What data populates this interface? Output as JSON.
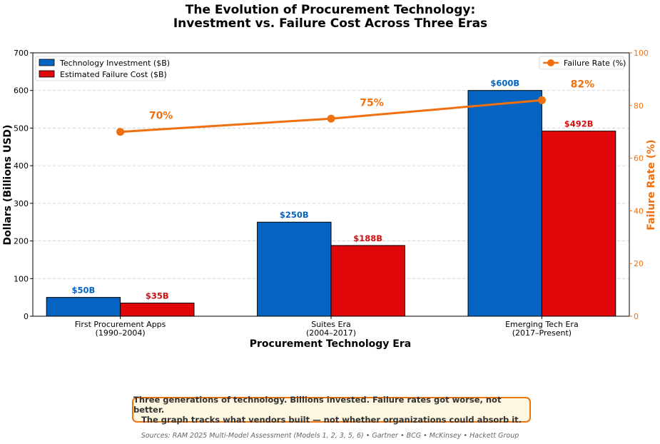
{
  "colors": {
    "investment": "#0563c1",
    "failure": "#e0070b",
    "rate": "#f0700f",
    "investment_label": "#0563c1",
    "failure_label": "#d31010",
    "rate_label": "#f0700f"
  },
  "chart_data": {
    "type": "bar",
    "title_lines": [
      "The Evolution of Procurement Technology:",
      "Investment vs. Failure Cost Across Three Eras"
    ],
    "categories": [
      {
        "name": "First Procurement Apps",
        "period": "(1990–2004)"
      },
      {
        "name": "Suites Era",
        "period": "(2004–2017)"
      },
      {
        "name": "Emerging Tech Era",
        "period": "(2017–Present)"
      }
    ],
    "series": [
      {
        "name": "Technology Investment ($B)",
        "values": [
          50,
          250,
          600
        ],
        "labels": [
          "$50B",
          "$250B",
          "$600B"
        ]
      },
      {
        "name": "Estimated Failure Cost ($B)",
        "values": [
          35,
          188,
          492
        ],
        "labels": [
          "$35B",
          "$188B",
          "$492B"
        ]
      }
    ],
    "line_series": {
      "name": "Failure Rate (%)",
      "values": [
        70,
        75,
        82
      ],
      "labels": [
        "70%",
        "75%",
        "82%"
      ],
      "axis": "right"
    },
    "xlabel": "Procurement Technology Era",
    "ylabel": "Dollars (Billions USD)",
    "y2label": "Failure Rate (%)",
    "ylim": [
      0,
      700
    ],
    "yticks": [
      0,
      100,
      200,
      300,
      400,
      500,
      600,
      700
    ],
    "y2lim": [
      0,
      100
    ],
    "y2ticks": [
      0,
      20,
      40,
      60,
      80,
      100
    ],
    "grid": true,
    "legend_left": "upper-left",
    "legend_right": "upper-right"
  },
  "callout": {
    "line1": "Three generations of technology. Billions invested. Failure rates got worse, not better.",
    "line2": "The graph tracks what vendors built — not whether organizations could absorb it."
  },
  "sources": "Sources: RAM 2025 Multi-Model Assessment (Models 1, 2, 3, 5, 6) • Gartner • BCG • McKinsey • Hackett Group"
}
